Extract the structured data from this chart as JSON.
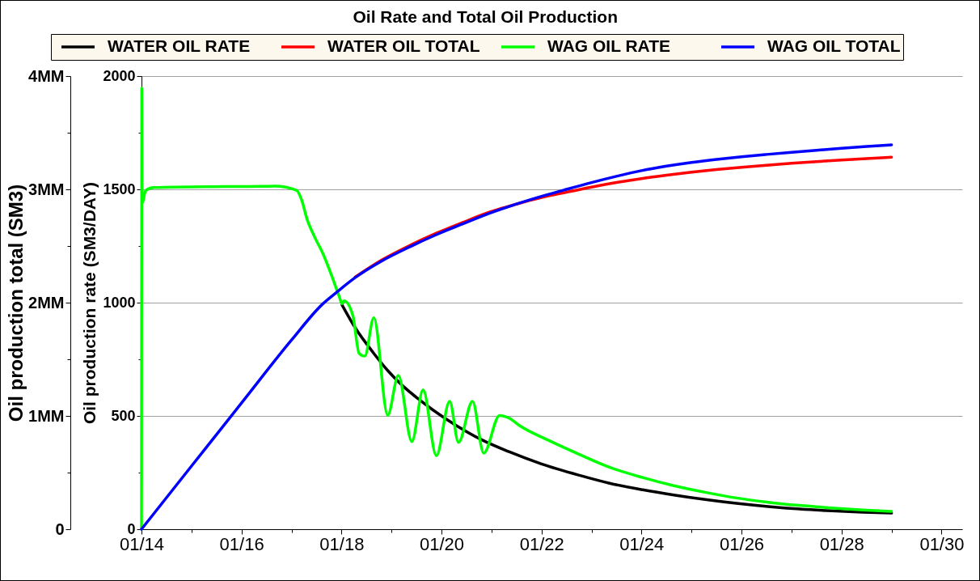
{
  "chart_data": {
    "type": "line",
    "title": "Oil Rate and Total Oil Production",
    "ylabel": "Oil production rate (SM3/DAY)",
    "y2label": "Oil production total (SM3)",
    "legend": "top",
    "grid": "y",
    "xlim": [
      "2014-01-01",
      "2030-06-01"
    ],
    "xticks": [
      {
        "value": "2014-01-01",
        "label": "01/14"
      },
      {
        "value": "2015-01-01",
        "label": null
      },
      {
        "value": "2016-01-01",
        "label": "01/16"
      },
      {
        "value": "2017-01-01",
        "label": null
      },
      {
        "value": "2018-01-01",
        "label": "01/18"
      },
      {
        "value": "2019-01-01",
        "label": null
      },
      {
        "value": "2020-01-01",
        "label": "01/20"
      },
      {
        "value": "2021-01-01",
        "label": null
      },
      {
        "value": "2022-01-01",
        "label": "01/22"
      },
      {
        "value": "2023-01-01",
        "label": null
      },
      {
        "value": "2024-01-01",
        "label": "01/24"
      },
      {
        "value": "2025-01-01",
        "label": null
      },
      {
        "value": "2026-01-01",
        "label": "01/26"
      },
      {
        "value": "2027-01-01",
        "label": null
      },
      {
        "value": "2028-01-01",
        "label": "01/28"
      },
      {
        "value": "2029-01-01",
        "label": null
      },
      {
        "value": "2030-01-01",
        "label": "01/30"
      }
    ],
    "ylim": [
      0,
      2000
    ],
    "yticks": [
      0,
      {
        "value": 250,
        "label": null
      },
      500,
      {
        "value": 750,
        "label": null
      },
      1000,
      {
        "value": 1250,
        "label": null
      },
      1500,
      {
        "value": 1750,
        "label": null
      },
      2000
    ],
    "y2lim": [
      0,
      4
    ],
    "y2ticks": [
      0,
      {
        "value": 0.5,
        "label": null
      },
      {
        "value": 1,
        "label": "1MM"
      },
      {
        "value": 1.5,
        "label": null
      },
      {
        "value": 2,
        "label": "2MM"
      },
      {
        "value": 2.5,
        "label": null
      },
      {
        "value": 3,
        "label": "3MM"
      },
      {
        "value": 3.5,
        "label": null
      },
      {
        "value": 4,
        "label": "4MM"
      }
    ],
    "series": [
      {
        "name": "WATER OIL RATE",
        "color": "#000000",
        "x": [
          "2018-01-05",
          "2018-04-10",
          "2018-08-25",
          "2018-12-05",
          "2019-03-15",
          "2019-07-10",
          "2019-11-01",
          "2020-04-10",
          "2020-10-20",
          "2021-05-08",
          "2022-01-01",
          "2022-10-05",
          "2023-05-20",
          "2024-01-10",
          "2024-08-25",
          "2025-04-10",
          "2025-11-25",
          "2026-07-15",
          "2027-03-01",
          "2027-10-20",
          "2028-06-05",
          "2029-01-01"
        ],
        "values": [
          990,
          890,
          776,
          700,
          638,
          578,
          526,
          461,
          395,
          342,
          288,
          238,
          202,
          174,
          151,
          131,
          114,
          100,
          89,
          81,
          75,
          71
        ]
      },
      {
        "name": "WATER OIL TOTAL",
        "color": "#ff0000",
        "axis": "y2",
        "x": [
          "2018-04-10",
          "2018-10-25",
          "2019-05-10",
          "2019-11-25",
          "2020-06-05",
          "2020-12-20",
          "2021-07-02",
          "2022-01-01",
          "2022-07-02",
          "2023-01-01",
          "2023-07-02",
          "2024-01-01",
          "2024-07-02",
          "2025-01-01",
          "2025-07-02",
          "2026-01-01",
          "2026-07-02",
          "2027-01-01",
          "2027-07-02",
          "2028-01-01",
          "2028-07-02",
          "2029-01-01"
        ],
        "values": [
          2.225,
          2.378,
          2.502,
          2.613,
          2.708,
          2.8,
          2.87,
          2.928,
          2.975,
          3.02,
          3.06,
          3.095,
          3.125,
          3.152,
          3.175,
          3.195,
          3.213,
          3.23,
          3.245,
          3.259,
          3.272,
          3.284
        ]
      },
      {
        "name": "WAG OIL RATE",
        "color": "#00ff00",
        "x": [
          "2014-01-01",
          "2014-01-03",
          "2014-01-06",
          "2014-02-01",
          "2014-04-01",
          "2015-06-01",
          "2016-06-01",
          "2016-09-01",
          "2017-02-06",
          "2017-03-15",
          "2017-04-23",
          "2017-06-20",
          "2017-08-18",
          "2017-10-20",
          "2017-12-16",
          "2018-01-05",
          "2018-01-20",
          "2018-03-25",
          "2018-05-10",
          "2018-06-20",
          "2018-08-25",
          "2018-12-05",
          "2019-02-20",
          "2019-05-30",
          "2019-08-20",
          "2019-11-25",
          "2020-03-01",
          "2020-05-05",
          "2020-08-15",
          "2020-11-05",
          "2021-03-01",
          "2021-05-10",
          "2021-07-25",
          "2022-02-15",
          "2022-10-05",
          "2023-05-20",
          "2024-01-10",
          "2024-08-25",
          "2025-04-10",
          "2025-11-25",
          "2026-07-15",
          "2027-03-01",
          "2027-10-20",
          "2028-06-05",
          "2029-01-01"
        ],
        "values": [
          0,
          1946,
          1440,
          1495,
          1508,
          1512,
          1513,
          1514,
          1496,
          1455,
          1371,
          1288,
          1217,
          1121,
          1026,
          995,
          1008,
          943,
          776,
          764,
          933,
          503,
          679,
          387,
          615,
          324,
          564,
          383,
          564,
          336,
          502,
          490,
          457,
          394,
          330,
          272,
          228,
          192,
          163,
          138,
          119,
          105,
          94,
          85,
          79
        ]
      },
      {
        "name": "WAG OIL TOTAL",
        "color": "#0000ff",
        "axis": "y2",
        "x": [
          "2014-01-01",
          "2015-01-01",
          "2016-01-01",
          "2017-01-01",
          "2017-08-18",
          "2017-11-25",
          "2018-04-10",
          "2018-10-25",
          "2019-05-10",
          "2019-11-25",
          "2020-06-05",
          "2020-12-20",
          "2021-07-02",
          "2022-01-01",
          "2022-07-02",
          "2023-01-01",
          "2023-07-02",
          "2024-01-01",
          "2024-07-02",
          "2025-01-01",
          "2025-07-02",
          "2026-01-01",
          "2026-07-02",
          "2027-01-01",
          "2027-07-02",
          "2028-01-01",
          "2028-07-02",
          "2029-01-01"
        ],
        "values": [
          0,
          0.557,
          1.113,
          1.67,
          1.99,
          2.09,
          2.22,
          2.37,
          2.49,
          2.6,
          2.695,
          2.79,
          2.87,
          2.938,
          3.0,
          3.06,
          3.115,
          3.165,
          3.205,
          3.238,
          3.265,
          3.288,
          3.308,
          3.327,
          3.345,
          3.362,
          3.378,
          3.393
        ]
      }
    ]
  }
}
